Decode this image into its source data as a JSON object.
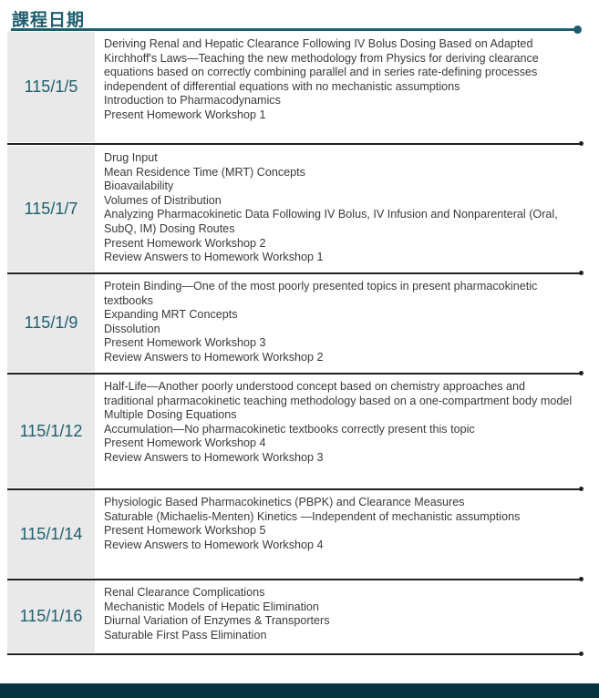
{
  "title": "課程日期",
  "colors": {
    "accent": "#1e5f6e",
    "footer": "#063340",
    "date_bg": "#e9e9e9"
  },
  "sessions": [
    {
      "date": "115/1/5",
      "items": [
        "Deriving Renal and Hepatic Clearance Following IV Bolus Dosing Based on Adapted Kirchhoff's Laws—Teaching the new methodology from Physics for deriving clearance equations based on correctly combining parallel and in series rate-defining processes independent of differential equations with no mechanistic assumptions",
        "Introduction to Pharmacodynamics",
        "Present Homework Workshop 1"
      ]
    },
    {
      "date": "115/1/7",
      "items": [
        "Drug Input",
        "Mean Residence Time (MRT) Concepts",
        "Bioavailability",
        "Volumes of Distribution",
        "Analyzing Pharmacokinetic Data Following IV Bolus, IV Infusion and Nonparenteral (Oral, SubQ, IM) Dosing Routes",
        "Present Homework Workshop 2",
        "Review Answers to Homework Workshop 1"
      ]
    },
    {
      "date": "115/1/9",
      "items": [
        "Protein Binding—One of the most poorly presented topics in present pharmacokinetic textbooks",
        "Expanding MRT Concepts",
        "Dissolution",
        "Present Homework Workshop 3",
        "Review Answers to Homework Workshop 2"
      ]
    },
    {
      "date": "115/1/12",
      "items": [
        "Half-Life—Another poorly understood concept based on chemistry approaches and traditional pharmacokinetic teaching methodology based on a one-compartment body model",
        "Multiple Dosing Equations",
        "Accumulation—No pharmacokinetic textbooks correctly present this topic",
        "Present Homework Workshop 4",
        "Review Answers to Homework Workshop 3"
      ]
    },
    {
      "date": "115/1/14",
      "items": [
        "Physiologic Based Pharmacokinetics (PBPK) and Clearance Measures",
        "Saturable (Michaelis-Menten) Kinetics —Independent of mechanistic assumptions",
        "Present Homework Workshop 5",
        "Review Answers to Homework Workshop 4"
      ]
    },
    {
      "date": "115/1/16",
      "items": [
        "Renal Clearance Complications",
        "Mechanistic Models of Hepatic Elimination",
        "Diurnal Variation of Enzymes & Transporters",
        "Saturable First Pass Elimination"
      ]
    }
  ]
}
